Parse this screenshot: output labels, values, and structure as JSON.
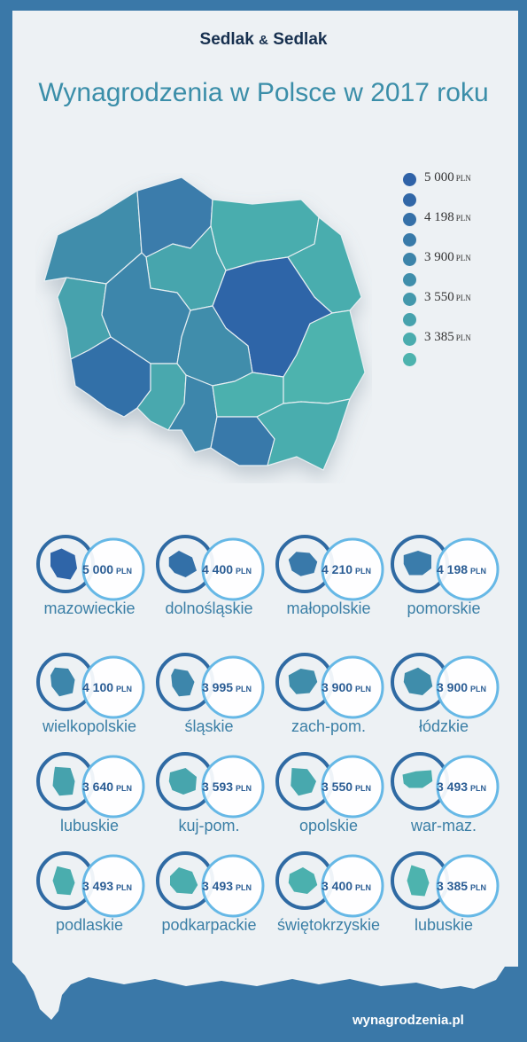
{
  "header": {
    "brand_left": "Sedlak",
    "brand_amp": "&",
    "brand_right": "Sedlak",
    "title": "Wynagrodzenia w Polsce w 2017 roku"
  },
  "colors": {
    "background_frame": "#3a78a8",
    "panel": "#edf1f4",
    "brand_text": "#17304f",
    "title_text": "#3b8ea9",
    "value_text": "#2b5d94",
    "name_text": "#3b7fa6",
    "ring_outer": "#2f6aa3",
    "ring_inner": "#66b8e6"
  },
  "chart_data": {
    "type": "choropleth",
    "title": "Wynagrodzenia w Polsce w 2017 roku",
    "unit": "PLN",
    "scale": {
      "labels": [
        {
          "value": "5 000",
          "unit": "PLN",
          "step": 0
        },
        {
          "value": "4 198",
          "unit": "PLN",
          "step": 2
        },
        {
          "value": "3 900",
          "unit": "PLN",
          "step": 4
        },
        {
          "value": "3 550",
          "unit": "PLN",
          "step": 6
        },
        {
          "value": "3 385",
          "unit": "PLN",
          "step": 8
        }
      ],
      "swatches": [
        "#2f62a7",
        "#3167a7",
        "#3570a8",
        "#387aa9",
        "#3c84aa",
        "#3f8eab",
        "#4398ac",
        "#46a2ad",
        "#4aacae",
        "#4db3ae"
      ]
    },
    "regions": [
      {
        "name": "mazowieckie",
        "value": 5000,
        "value_text": "5 000",
        "color": "#2f65a8"
      },
      {
        "name": "dolnośląskie",
        "value": 4400,
        "value_text": "4 400",
        "color": "#3370a8"
      },
      {
        "name": "małopolskie",
        "value": 4210,
        "value_text": "4 210",
        "color": "#3979aa"
      },
      {
        "name": "pomorskie",
        "value": 4198,
        "value_text": "4 198",
        "color": "#3a7cab"
      },
      {
        "name": "wielkopolskie",
        "value": 4100,
        "value_text": "4 100",
        "color": "#3d86ab"
      },
      {
        "name": "śląskie",
        "value": 3995,
        "value_text": "3 995",
        "color": "#3d86ab"
      },
      {
        "name": "zach-pom.",
        "value": 3900,
        "value_text": "3 900",
        "color": "#3f8dab"
      },
      {
        "name": "łódzkie",
        "value": 3900,
        "value_text": "3 900",
        "color": "#3f8dab"
      },
      {
        "name": "lubuskie",
        "value": 3640,
        "value_text": "3 640",
        "color": "#46a2ad"
      },
      {
        "name": "kuj-pom.",
        "value": 3593,
        "value_text": "3 593",
        "color": "#47a5ad"
      },
      {
        "name": "opolskie",
        "value": 3550,
        "value_text": "3 550",
        "color": "#48a8ae"
      },
      {
        "name": "war-maz.",
        "value": 3493,
        "value_text": "3 493",
        "color": "#4aadae"
      },
      {
        "name": "podlaskie",
        "value": 3493,
        "value_text": "3 493",
        "color": "#4aadae"
      },
      {
        "name": "podkarpackie",
        "value": 3493,
        "value_text": "3 493",
        "color": "#4aadae"
      },
      {
        "name": "świętokrzyskie",
        "value": 3400,
        "value_text": "3 400",
        "color": "#4bb0ae"
      },
      {
        "name": "lubuskie",
        "value": 3385,
        "value_text": "3 385",
        "color": "#4db3ae"
      }
    ]
  },
  "footer": {
    "site": "wynagrodzenia.pl"
  }
}
